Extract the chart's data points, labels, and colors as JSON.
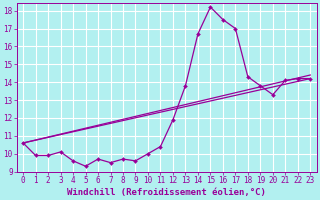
{
  "xlabel": "Windchill (Refroidissement éolien,°C)",
  "xlim": [
    -0.5,
    23.5
  ],
  "ylim": [
    9,
    18.4
  ],
  "yticks": [
    9,
    10,
    11,
    12,
    13,
    14,
    15,
    16,
    17,
    18
  ],
  "xticks": [
    0,
    1,
    2,
    3,
    4,
    5,
    6,
    7,
    8,
    9,
    10,
    11,
    12,
    13,
    14,
    15,
    16,
    17,
    18,
    19,
    20,
    21,
    22,
    23
  ],
  "bg_color": "#b2f0f0",
  "line_color": "#990099",
  "curve1_x": [
    0,
    1,
    2,
    3,
    4,
    5,
    6,
    7,
    8,
    9,
    10,
    11,
    12,
    13,
    14,
    15,
    16,
    17,
    18,
    19,
    20,
    21,
    22,
    23
  ],
  "curve1_y": [
    10.6,
    9.9,
    9.9,
    10.1,
    9.6,
    9.3,
    9.7,
    9.5,
    9.7,
    9.6,
    10.0,
    10.4,
    11.9,
    13.8,
    16.7,
    18.2,
    17.5,
    17.0,
    14.3,
    13.8,
    13.3,
    14.1,
    14.2,
    14.2
  ],
  "curve2_x": [
    0,
    23
  ],
  "curve2_y": [
    10.6,
    14.2
  ],
  "curve3_x": [
    0,
    23
  ],
  "curve3_y": [
    10.6,
    14.4
  ],
  "grid_color": "#ffffff",
  "tick_fontsize": 5.5,
  "label_fontsize": 6.5
}
